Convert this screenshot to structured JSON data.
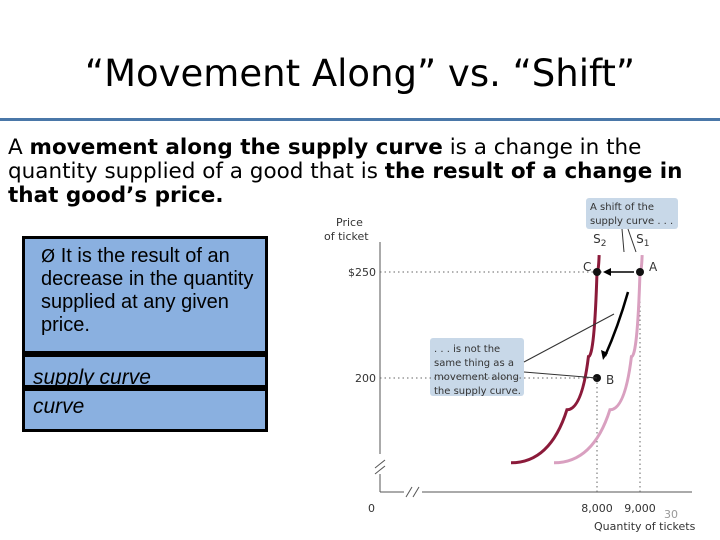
{
  "slide": {
    "title": "“Movement Along” vs. “Shift”",
    "body_plain_1": "A ",
    "body_bold_1": "movement along the supply curve",
    "body_plain_2": " is a change in the quantity supplied of a good that is ",
    "body_bold_2": "the result of a change in that good’s price.",
    "box1_arrow": "Ø",
    "box1_text": "It is the result of an decrease in the quantity supplied at any given price.",
    "box2_line1": "supply curve",
    "box2_line2": "curve",
    "page_number": "30"
  },
  "colors": {
    "accent_rule": "#4a77a8",
    "box_fill": "#8ab0e0",
    "s1_curve": "#d9a0c0",
    "s2_curve": "#8b1a3a",
    "callout_fill": "#c8d8e8"
  },
  "chart_data": {
    "type": "line",
    "ylabel": "Price of ticket",
    "xlabel": "Quantity of tickets",
    "y_ticks": [
      {
        "value": 250,
        "label": "$250"
      },
      {
        "value": 200,
        "label": "200"
      }
    ],
    "x_ticks": [
      {
        "value": 8000,
        "label": "8,000"
      },
      {
        "value": 9000,
        "label": "9,000"
      }
    ],
    "origin_label": "0",
    "series": [
      {
        "name": "S2",
        "label": "S",
        "subscript": "2",
        "points": [
          [
            6000,
            160
          ],
          [
            7300,
            185
          ],
          [
            7800,
            210
          ],
          [
            8000,
            250
          ],
          [
            8050,
            258
          ]
        ]
      },
      {
        "name": "S1",
        "label": "S",
        "subscript": "1",
        "points": [
          [
            7000,
            160
          ],
          [
            8300,
            185
          ],
          [
            8800,
            210
          ],
          [
            9000,
            250
          ],
          [
            9050,
            258
          ]
        ]
      }
    ],
    "points": [
      {
        "label": "A",
        "x": 9000,
        "y": 250
      },
      {
        "label": "B",
        "x": 8000,
        "y": 200
      },
      {
        "label": "C",
        "x": 8000,
        "y": 250
      }
    ],
    "annotations": {
      "shift_callout": [
        "A shift of the",
        "supply curve . . ."
      ],
      "movement_callout": [
        ". . . is not the",
        "same thing as a",
        "movement along",
        "the supply curve."
      ]
    }
  }
}
